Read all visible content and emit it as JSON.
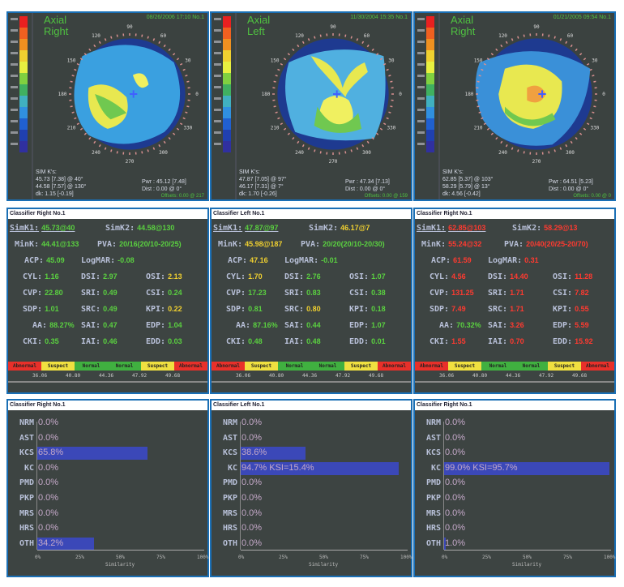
{
  "panels": [
    {
      "map": {
        "type_label": "Axial",
        "eye_label": "Right",
        "date": "08/26/2006 17:10 No.1",
        "simk_title": "SIM K's:",
        "simk1": "45.73 [7.38] @ 40°",
        "simk2": "44.58 [7.57] @ 130°",
        "dk": "dk: 1.15 [-0.19]",
        "pwr": "Pwr : 45.12 [7.48]",
        "dist": "Dist : 0.00 @ 0°",
        "offsets": "Offsets: 0.00 @ 217"
      },
      "classifier_title": "Classifier Right No.1",
      "indices": [
        {
          "label": "SimK1:",
          "value": "45.73@40",
          "color": "#5ad040"
        },
        {
          "label": "SimK2:",
          "value": "44.58@130",
          "color": "#5ad040"
        },
        {
          "label": "MinK:",
          "value": "44.41@133",
          "color": "#5ad040"
        },
        {
          "label": "PVA:",
          "value": "20/16(20/10-20/25)",
          "color": "#5ad040"
        },
        {
          "label": "ACP:",
          "value": "45.09",
          "color": "#5ad040"
        },
        {
          "label": "LogMAR:",
          "value": "-0.08",
          "color": "#5ad040"
        },
        {
          "label": "CYL:",
          "value": "1.16",
          "color": "#5ad040"
        },
        {
          "label": "DSI:",
          "value": "2.97",
          "color": "#5ad040"
        },
        {
          "label": "OSI:",
          "value": "2.13",
          "color": "#f0d030"
        },
        {
          "label": "CVP:",
          "value": "22.80",
          "color": "#5ad040"
        },
        {
          "label": "SRI:",
          "value": "0.49",
          "color": "#5ad040"
        },
        {
          "label": "CSI:",
          "value": "0.24",
          "color": "#5ad040"
        },
        {
          "label": "SDP:",
          "value": "1.01",
          "color": "#5ad040"
        },
        {
          "label": "SRC:",
          "value": "0.49",
          "color": "#5ad040"
        },
        {
          "label": "KPI:",
          "value": "0.22",
          "color": "#f0d030"
        },
        {
          "label": "AA:",
          "value": "88.27%",
          "color": "#5ad040"
        },
        {
          "label": "SAI:",
          "value": "0.47",
          "color": "#5ad040"
        },
        {
          "label": "EDP:",
          "value": "1.04",
          "color": "#5ad040"
        },
        {
          "label": "CKI:",
          "value": "0.35",
          "color": "#5ad040"
        },
        {
          "label": "IAI:",
          "value": "0.46",
          "color": "#5ad040"
        },
        {
          "label": "EDD:",
          "value": "0.03",
          "color": "#5ad040"
        }
      ],
      "similarity": [
        {
          "code": "NRM",
          "text": "0.0%",
          "value": 0
        },
        {
          "code": "AST",
          "text": "0.0%",
          "value": 0
        },
        {
          "code": "KCS",
          "text": "65.8%",
          "value": 65.8
        },
        {
          "code": "KC",
          "text": "0.0%",
          "value": 0
        },
        {
          "code": "PMD",
          "text": "0.0%",
          "value": 0
        },
        {
          "code": "PKP",
          "text": "0.0%",
          "value": 0
        },
        {
          "code": "MRS",
          "text": "0.0%",
          "value": 0
        },
        {
          "code": "HRS",
          "text": "0.0%",
          "value": 0
        },
        {
          "code": "OTH",
          "text": "34.2%",
          "value": 34.2
        }
      ]
    },
    {
      "map": {
        "type_label": "Axial",
        "eye_label": "Left",
        "date": "11/30/2004 15:35 No.1",
        "simk_title": "SIM K's:",
        "simk1": "47.87 [7.05] @ 97°",
        "simk2": "46.17 [7.31] @ 7°",
        "dk": "dk: 1.70 [-0.26]",
        "pwr": "Pwr : 47.34 [7.13]",
        "dist": "Dist : 0.00 @ 0°",
        "offsets": "Offsets: 0.00 @ 159"
      },
      "classifier_title": "Classifier Left No.1",
      "indices": [
        {
          "label": "SimK1:",
          "value": "47.87@97",
          "color": "#5ad040"
        },
        {
          "label": "SimK2:",
          "value": "46.17@7",
          "color": "#f0d030"
        },
        {
          "label": "MinK:",
          "value": "45.98@187",
          "color": "#f0d030"
        },
        {
          "label": "PVA:",
          "value": "20/20(20/10-20/30)",
          "color": "#5ad040"
        },
        {
          "label": "ACP:",
          "value": "47.16",
          "color": "#f0d030"
        },
        {
          "label": "LogMAR:",
          "value": "-0.01",
          "color": "#5ad040"
        },
        {
          "label": "CYL:",
          "value": "1.70",
          "color": "#f0d030"
        },
        {
          "label": "DSI:",
          "value": "2.76",
          "color": "#5ad040"
        },
        {
          "label": "OSI:",
          "value": "1.07",
          "color": "#5ad040"
        },
        {
          "label": "CVP:",
          "value": "17.23",
          "color": "#5ad040"
        },
        {
          "label": "SRI:",
          "value": "0.83",
          "color": "#5ad040"
        },
        {
          "label": "CSI:",
          "value": "0.38",
          "color": "#5ad040"
        },
        {
          "label": "SDP:",
          "value": "0.81",
          "color": "#5ad040"
        },
        {
          "label": "SRC:",
          "value": "0.80",
          "color": "#f0d030"
        },
        {
          "label": "KPI:",
          "value": "0.18",
          "color": "#5ad040"
        },
        {
          "label": "AA:",
          "value": "87.16%",
          "color": "#5ad040"
        },
        {
          "label": "SAI:",
          "value": "0.44",
          "color": "#5ad040"
        },
        {
          "label": "EDP:",
          "value": "1.07",
          "color": "#5ad040"
        },
        {
          "label": "CKI:",
          "value": "0.48",
          "color": "#5ad040"
        },
        {
          "label": "IAI:",
          "value": "0.48",
          "color": "#5ad040"
        },
        {
          "label": "EDD:",
          "value": "0.01",
          "color": "#5ad040"
        }
      ],
      "similarity": [
        {
          "code": "NRM",
          "text": "0.0%",
          "value": 0
        },
        {
          "code": "AST",
          "text": "0.0%",
          "value": 0
        },
        {
          "code": "KCS",
          "text": "38.6%",
          "value": 38.6
        },
        {
          "code": "KC",
          "text": "94.7% KSI=15.4%",
          "value": 94.7
        },
        {
          "code": "PMD",
          "text": "0.0%",
          "value": 0
        },
        {
          "code": "PKP",
          "text": "0.0%",
          "value": 0
        },
        {
          "code": "MRS",
          "text": "0.0%",
          "value": 0
        },
        {
          "code": "HRS",
          "text": "0.0%",
          "value": 0
        },
        {
          "code": "OTH",
          "text": "0.0%",
          "value": 0
        }
      ]
    },
    {
      "map": {
        "type_label": "Axial",
        "eye_label": "Right",
        "date": "01/21/2005 09:54 No.1",
        "simk_title": "SIM K's:",
        "simk1": "62.85 [5.37] @ 103°",
        "simk2": "58.29 [5.79] @ 13°",
        "dk": "dk: 4.56 [-0.42]",
        "pwr": "Pwr : 64.51 [5.23]",
        "dist": "Dist : 0.00 @ 0°",
        "offsets": "Offsets: 0.00 @ 0"
      },
      "classifier_title": "Classifier Right No.1",
      "indices": [
        {
          "label": "SimK1:",
          "value": "62.85@103",
          "color": "#ff3a30"
        },
        {
          "label": "SimK2:",
          "value": "58.29@13",
          "color": "#ff3a30"
        },
        {
          "label": "MinK:",
          "value": "55.24@32",
          "color": "#ff3a30"
        },
        {
          "label": "PVA:",
          "value": "20/40(20/25-20/70)",
          "color": "#ff3a30"
        },
        {
          "label": "ACP:",
          "value": "61.59",
          "color": "#ff3a30"
        },
        {
          "label": "LogMAR:",
          "value": "0.31",
          "color": "#ff3a30"
        },
        {
          "label": "CYL:",
          "value": "4.56",
          "color": "#ff3a30"
        },
        {
          "label": "DSI:",
          "value": "14.40",
          "color": "#ff3a30"
        },
        {
          "label": "OSI:",
          "value": "11.28",
          "color": "#ff3a30"
        },
        {
          "label": "CVP:",
          "value": "131.25",
          "color": "#ff3a30"
        },
        {
          "label": "SRI:",
          "value": "1.71",
          "color": "#ff3a30"
        },
        {
          "label": "CSI:",
          "value": "7.82",
          "color": "#ff3a30"
        },
        {
          "label": "SDP:",
          "value": "7.49",
          "color": "#ff3a30"
        },
        {
          "label": "SRC:",
          "value": "1.71",
          "color": "#ff3a30"
        },
        {
          "label": "KPI:",
          "value": "0.55",
          "color": "#ff3a30"
        },
        {
          "label": "AA:",
          "value": "70.32%",
          "color": "#5ad040"
        },
        {
          "label": "SAI:",
          "value": "3.26",
          "color": "#ff3a30"
        },
        {
          "label": "EDP:",
          "value": "5.59",
          "color": "#ff3a30"
        },
        {
          "label": "CKI:",
          "value": "1.55",
          "color": "#ff3a30"
        },
        {
          "label": "IAI:",
          "value": "0.70",
          "color": "#ff3a30"
        },
        {
          "label": "EDD:",
          "value": "15.92",
          "color": "#ff3a30"
        }
      ],
      "similarity": [
        {
          "code": "NRM",
          "text": "0.0%",
          "value": 0
        },
        {
          "code": "AST",
          "text": "0.0%",
          "value": 0
        },
        {
          "code": "KCS",
          "text": "0.0%",
          "value": 0
        },
        {
          "code": "KC",
          "text": "99.0% KSI=95.7%",
          "value": 99.0
        },
        {
          "code": "PMD",
          "text": "0.0%",
          "value": 0
        },
        {
          "code": "PKP",
          "text": "0.0%",
          "value": 0
        },
        {
          "code": "MRS",
          "text": "0.0%",
          "value": 0
        },
        {
          "code": "HRS",
          "text": "0.0%",
          "value": 0
        },
        {
          "code": "OTH",
          "text": "1.0%",
          "value": 1.0
        }
      ]
    }
  ],
  "band": [
    {
      "label": "Abnormal",
      "color": "#e8302a"
    },
    {
      "label": "Suspect",
      "color": "#f0e040"
    },
    {
      "label": "Normal",
      "color": "#40b040"
    },
    {
      "label": "Normal",
      "color": "#40b040"
    },
    {
      "label": "Suspect",
      "color": "#f0e040"
    },
    {
      "label": "Abnormal",
      "color": "#e8302a"
    }
  ],
  "band_ticks": [
    "36.06",
    "40.80",
    "44.36",
    "47.92",
    "49.68"
  ],
  "axis_labels": [
    "0%",
    "25%",
    "50%",
    "75%",
    "100%"
  ],
  "axis_title": "Similarity",
  "angle_labels": [
    "0",
    "30",
    "60",
    "90",
    "120",
    "150",
    "180",
    "210",
    "240",
    "270",
    "300",
    "330"
  ]
}
